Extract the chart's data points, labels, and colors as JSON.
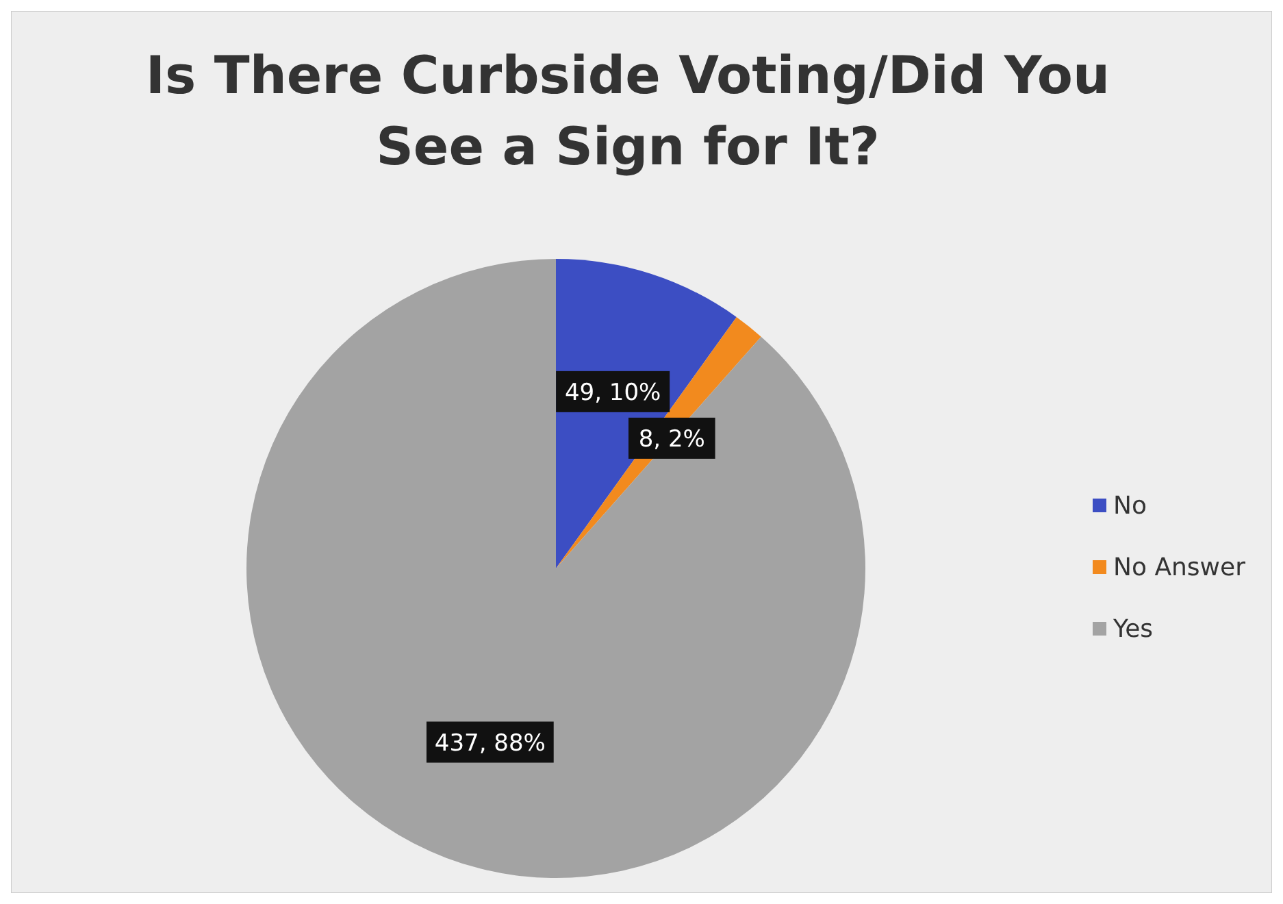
{
  "chart_data": {
    "type": "pie",
    "title": "Is There Curbside Voting/Did You See a Sign for It?",
    "categories": [
      "No",
      "No Answer",
      "Yes"
    ],
    "values": [
      49,
      8,
      437
    ],
    "colors": [
      "#3c4ec3",
      "#f28a1e",
      "#a3a3a3"
    ],
    "value_labels": [
      "49, 10%",
      "8, 2%",
      "437, 88%"
    ],
    "legend": "right"
  }
}
